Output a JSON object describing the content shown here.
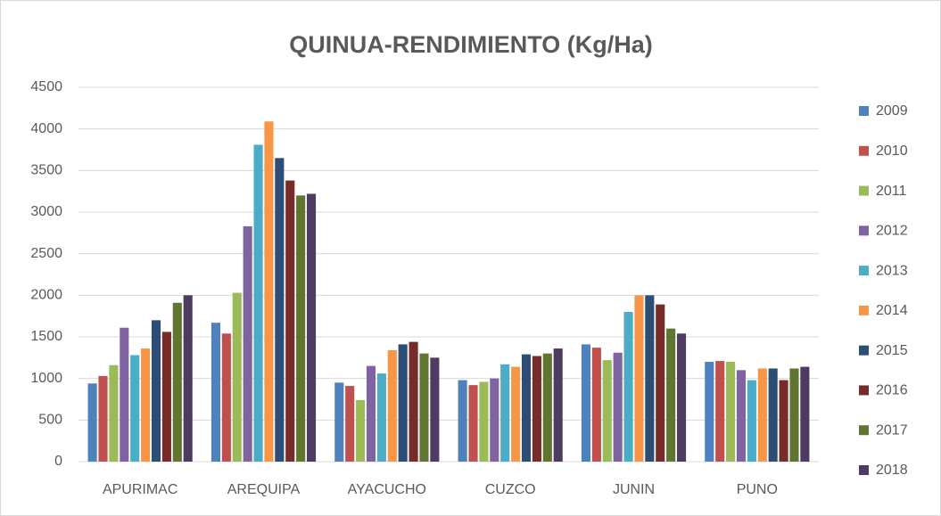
{
  "chart_data": {
    "type": "bar",
    "title": "QUINUA-RENDIMIENTO (Kg/Ha)",
    "categories": [
      "APURIMAC",
      "AREQUIPA",
      "AYACUCHO",
      "CUZCO",
      "JUNIN",
      "PUNO"
    ],
    "series": [
      {
        "name": "2009",
        "color": "#4f81bd",
        "values": [
          940,
          1670,
          950,
          980,
          1410,
          1200
        ]
      },
      {
        "name": "2010",
        "color": "#c0504d",
        "values": [
          1030,
          1540,
          910,
          920,
          1370,
          1210
        ]
      },
      {
        "name": "2011",
        "color": "#9bbb59",
        "values": [
          1160,
          2030,
          740,
          960,
          1220,
          1200
        ]
      },
      {
        "name": "2012",
        "color": "#8064a2",
        "values": [
          1610,
          2830,
          1150,
          1000,
          1310,
          1100
        ]
      },
      {
        "name": "2013",
        "color": "#4bacc6",
        "values": [
          1280,
          3810,
          1060,
          1170,
          1800,
          980
        ]
      },
      {
        "name": "2014",
        "color": "#f79646",
        "values": [
          1360,
          4090,
          1340,
          1140,
          2000,
          1120
        ]
      },
      {
        "name": "2015",
        "color": "#2c4d75",
        "values": [
          1700,
          3650,
          1410,
          1290,
          2000,
          1120
        ]
      },
      {
        "name": "2016",
        "color": "#772c2a",
        "values": [
          1560,
          3380,
          1440,
          1270,
          1890,
          980
        ]
      },
      {
        "name": "2017",
        "color": "#5f7530",
        "values": [
          1910,
          3200,
          1300,
          1300,
          1600,
          1120
        ]
      },
      {
        "name": "2018",
        "color": "#4d3b62",
        "values": [
          2000,
          3220,
          1250,
          1360,
          1540,
          1140
        ]
      }
    ],
    "ylim": [
      0,
      4500
    ],
    "yticks": [
      0,
      500,
      1000,
      1500,
      2000,
      2500,
      3000,
      3500,
      4000,
      4500
    ],
    "grid": true,
    "legend": "right"
  }
}
